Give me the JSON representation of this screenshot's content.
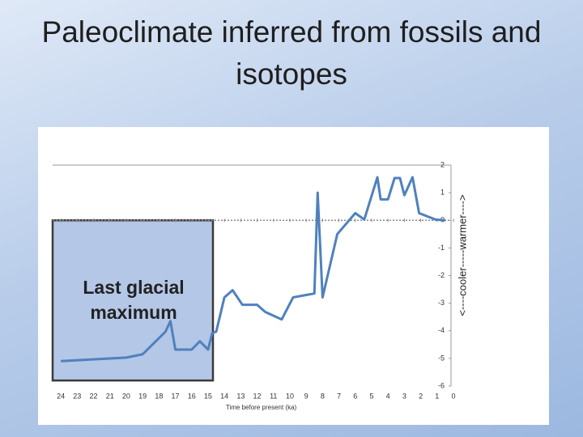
{
  "chart_data": {
    "type": "line",
    "title": "Paleoclimate inferred from fossils and isotopes",
    "xlabel": "Time before present (ka)",
    "ylabel": "<----cooler-----warmer---->",
    "x": [
      24,
      20,
      19,
      17.6,
      17.3,
      17,
      16,
      15.5,
      15,
      14.75,
      14.5,
      14,
      13.5,
      12.9,
      12,
      11.5,
      10.5,
      9.8,
      8.5,
      8.3,
      8,
      7.1,
      6,
      5.45,
      4.65,
      4.45,
      4,
      3.6,
      3.27,
      3,
      2.5,
      2.1,
      1.1,
      0.5
    ],
    "series": [
      {
        "color": "#4f81bd",
        "values": [
          -5.1,
          -4.97,
          -4.85,
          -4.03,
          -3.65,
          -4.68,
          -4.68,
          -4.38,
          -4.68,
          -4.09,
          -4.03,
          -2.79,
          -2.53,
          -3.06,
          -3.06,
          -3.32,
          -3.59,
          -2.79,
          -2.65,
          1.0,
          -2.79,
          -0.5,
          0.26,
          0.03,
          1.56,
          0.76,
          0.76,
          1.53,
          1.53,
          0.91,
          1.56,
          0.26,
          0.03,
          0
        ]
      }
    ],
    "xlim": [
      24.5,
      0
    ],
    "ylim": [
      -6,
      2
    ],
    "xticks": [
      24,
      23,
      22,
      21,
      20,
      19,
      18,
      17,
      16,
      15,
      14,
      13,
      12,
      11,
      10,
      9,
      8,
      7,
      6,
      5,
      4,
      3,
      2,
      1,
      0
    ],
    "yticks": [
      2,
      1,
      0,
      -1,
      -2,
      -3,
      -4,
      -5,
      -6
    ],
    "region": {
      "label": "Last glacial maximum",
      "x": [
        24.5,
        14.7
      ],
      "y": [
        0,
        -5.8
      ],
      "color": "#b4c7e7"
    }
  }
}
